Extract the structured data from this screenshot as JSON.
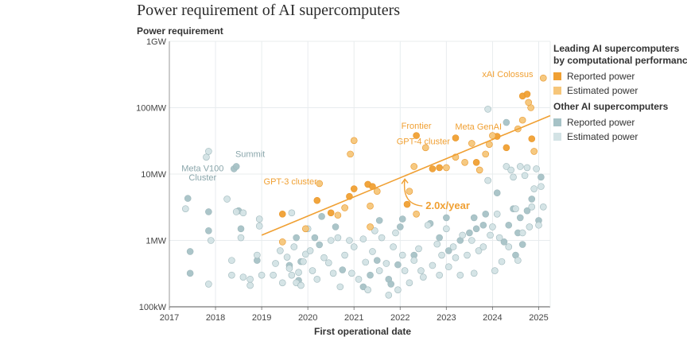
{
  "chart_data": {
    "type": "scatter",
    "title": "Power requirement of AI supercomputers",
    "ylabel": "Power requirement",
    "xlabel": "First operational date",
    "y_scale": "log",
    "xlim": [
      2017,
      2025.25
    ],
    "ylim": [
      100000,
      1000000000
    ],
    "x_ticks": [
      "2017",
      "2018",
      "2019",
      "2020",
      "2021",
      "2022",
      "2023",
      "2024",
      "2025"
    ],
    "y_ticks": [
      {
        "value": 1000000000,
        "label": "1GW"
      },
      {
        "value": 100000000,
        "label": "100MW"
      },
      {
        "value": 10000000,
        "label": "10MW"
      },
      {
        "value": 1000000,
        "label": "1MW"
      },
      {
        "value": 100000,
        "label": "100kW"
      }
    ],
    "grid": true,
    "legend_position": "right",
    "trend": {
      "label": "2.0x/year",
      "from": {
        "x": 2019.0,
        "y": 1200000
      },
      "to": {
        "x": 2025.25,
        "y": 76000000
      }
    },
    "colors": {
      "leading_reported": "#f0a033",
      "leading_estimated": "#f6c67a",
      "other_reported": "#a6c2c6",
      "other_estimated": "#d3e3e5",
      "trend": "#f0a033",
      "grid": "#e8ecee",
      "annot_other": "#8aa6ab"
    },
    "legend": [
      {
        "heading": "Leading AI supercomputers\nby computational performance",
        "items": [
          {
            "label": "Reported power",
            "color": "#f0a033"
          },
          {
            "label": "Estimated power",
            "color": "#f6c67a"
          }
        ]
      },
      {
        "heading": "Other AI supercomputers",
        "items": [
          {
            "label": "Reported power",
            "color": "#a6c2c6"
          },
          {
            "label": "Estimated power",
            "color": "#d3e3e5"
          }
        ]
      }
    ],
    "annotations": [
      {
        "text": "xAI Colossus",
        "x": 2024.88,
        "y": 290000000,
        "group": "leading",
        "anchor": "end"
      },
      {
        "text": "Frontier",
        "x": 2022.35,
        "y": 48000000,
        "group": "leading",
        "anchor": "middle"
      },
      {
        "text": "Meta GenAI",
        "x": 2024.2,
        "y": 47000000,
        "group": "leading",
        "anchor": "end"
      },
      {
        "text": "GPT-4 cluster",
        "x": 2022.5,
        "y": 28000000,
        "group": "leading",
        "anchor": "middle"
      },
      {
        "text": "GPT-3 cluster",
        "x": 2020.2,
        "y": 7000000,
        "group": "leading",
        "anchor": "end"
      },
      {
        "text": "Summit",
        "x": 2018.75,
        "y": 18000000,
        "group": "other",
        "anchor": "middle"
      },
      {
        "text": "Meta V100",
        "x": 2017.72,
        "y": 11000000,
        "group": "other",
        "anchor": "middle"
      },
      {
        "text": "Cluster",
        "x": 2017.72,
        "y": 8000000,
        "group": "other",
        "anchor": "middle"
      }
    ],
    "series": [
      {
        "name": "Leading AI supercomputers: Reported power",
        "group": "leading",
        "kind": "reported",
        "points": [
          [
            2019.45,
            2500000
          ],
          [
            2020.2,
            4000000
          ],
          [
            2020.5,
            2600000
          ],
          [
            2020.9,
            4600000
          ],
          [
            2021.3,
            7000000
          ],
          [
            2021.0,
            6000000
          ],
          [
            2021.4,
            6500000
          ],
          [
            2022.35,
            38000000
          ],
          [
            2022.7,
            12000000
          ],
          [
            2022.85,
            12500000
          ],
          [
            2023.2,
            35000000
          ],
          [
            2023.65,
            15000000
          ],
          [
            2024.1,
            37000000
          ],
          [
            2024.3,
            25000000
          ],
          [
            2024.65,
            150000000
          ],
          [
            2024.75,
            160000000
          ],
          [
            2024.85,
            34000000
          ],
          [
            2022.15,
            3500000
          ]
        ]
      },
      {
        "name": "Leading AI supercomputers: Estimated power",
        "group": "leading",
        "kind": "estimated",
        "points": [
          [
            2019.45,
            950000
          ],
          [
            2019.95,
            1500000
          ],
          [
            2020.25,
            7200000
          ],
          [
            2020.65,
            2400000
          ],
          [
            2020.8,
            3100000
          ],
          [
            2020.92,
            20000000
          ],
          [
            2021.0,
            32000000
          ],
          [
            2021.35,
            3300000
          ],
          [
            2021.5,
            5500000
          ],
          [
            2022.2,
            5500000
          ],
          [
            2022.3,
            13000000
          ],
          [
            2022.35,
            2500000
          ],
          [
            2022.55,
            25000000
          ],
          [
            2023.0,
            12500000
          ],
          [
            2023.2,
            18000000
          ],
          [
            2023.4,
            15000000
          ],
          [
            2023.55,
            29000000
          ],
          [
            2023.72,
            11500000
          ],
          [
            2023.85,
            20000000
          ],
          [
            2023.93,
            28000000
          ],
          [
            2024.0,
            38000000
          ],
          [
            2024.55,
            48000000
          ],
          [
            2024.65,
            65000000
          ],
          [
            2024.83,
            100000000
          ],
          [
            2024.78,
            120000000
          ],
          [
            2025.1,
            280000000
          ],
          [
            2024.9,
            22000000
          ],
          [
            2021.35,
            1600000
          ]
        ]
      },
      {
        "name": "Other AI supercomputers: Reported power",
        "group": "other",
        "kind": "reported",
        "points": [
          [
            2017.4,
            4300000
          ],
          [
            2017.45,
            320000
          ],
          [
            2017.45,
            680000
          ],
          [
            2017.85,
            1400000
          ],
          [
            2017.85,
            2700000
          ],
          [
            2018.4,
            12000000
          ],
          [
            2018.45,
            13000000
          ],
          [
            2018.5,
            2800000
          ],
          [
            2018.55,
            1500000
          ],
          [
            2018.9,
            500000
          ],
          [
            2019.75,
            1100000
          ],
          [
            2019.8,
            250000
          ],
          [
            2019.85,
            480000
          ],
          [
            2020.15,
            1100000
          ],
          [
            2020.25,
            860000
          ],
          [
            2020.6,
            1600000
          ],
          [
            2020.75,
            360000
          ],
          [
            2021.2,
            200000
          ],
          [
            2021.35,
            300000
          ],
          [
            2021.5,
            500000
          ],
          [
            2021.55,
            2000000
          ],
          [
            2021.75,
            260000
          ],
          [
            2021.8,
            220000
          ],
          [
            2022.0,
            1600000
          ],
          [
            2022.05,
            2100000
          ],
          [
            2022.3,
            600000
          ],
          [
            2022.65,
            1800000
          ],
          [
            2022.85,
            1100000
          ],
          [
            2023.0,
            2200000
          ],
          [
            2023.05,
            700000
          ],
          [
            2023.3,
            1000000
          ],
          [
            2023.5,
            1300000
          ],
          [
            2023.65,
            1500000
          ],
          [
            2023.8,
            1700000
          ],
          [
            2023.85,
            2500000
          ],
          [
            2024.1,
            5200000
          ],
          [
            2024.3,
            60000000
          ],
          [
            2024.35,
            1700000
          ],
          [
            2024.45,
            3000000
          ],
          [
            2024.55,
            1300000
          ],
          [
            2024.6,
            2200000
          ],
          [
            2024.65,
            870000
          ],
          [
            2024.75,
            2800000
          ],
          [
            2024.85,
            4200000
          ],
          [
            2025.0,
            2000000
          ],
          [
            2025.05,
            9000000
          ],
          [
            2024.25,
            950000
          ],
          [
            2024.5,
            600000
          ],
          [
            2023.6,
            2200000
          ],
          [
            2021.95,
            430000
          ],
          [
            2020.3,
            2300000
          ],
          [
            2019.6,
            420000
          ]
        ]
      },
      {
        "name": "Other AI supercomputers: Estimated power",
        "group": "other",
        "kind": "estimated",
        "points": [
          [
            2017.35,
            3000000
          ],
          [
            2017.8,
            18000000
          ],
          [
            2017.85,
            22000000
          ],
          [
            2017.85,
            220000
          ],
          [
            2017.9,
            1000000
          ],
          [
            2018.25,
            4200000
          ],
          [
            2018.45,
            2700000
          ],
          [
            2018.6,
            2600000
          ],
          [
            2018.55,
            1100000
          ],
          [
            2018.35,
            500000
          ],
          [
            2018.35,
            300000
          ],
          [
            2018.6,
            280000
          ],
          [
            2018.75,
            260000
          ],
          [
            2018.75,
            210000
          ],
          [
            2018.9,
            600000
          ],
          [
            2018.95,
            1650000
          ],
          [
            2018.95,
            2100000
          ],
          [
            2019.0,
            300000
          ],
          [
            2019.25,
            300000
          ],
          [
            2019.3,
            450000
          ],
          [
            2019.4,
            700000
          ],
          [
            2019.45,
            230000
          ],
          [
            2019.55,
            560000
          ],
          [
            2019.6,
            380000
          ],
          [
            2019.65,
            300000
          ],
          [
            2019.65,
            2600000
          ],
          [
            2019.7,
            800000
          ],
          [
            2019.75,
            230000
          ],
          [
            2019.8,
            330000
          ],
          [
            2019.85,
            210000
          ],
          [
            2019.9,
            480000
          ],
          [
            2019.95,
            620000
          ],
          [
            2020.0,
            1500000
          ],
          [
            2020.05,
            700000
          ],
          [
            2020.1,
            350000
          ],
          [
            2020.2,
            260000
          ],
          [
            2020.35,
            550000
          ],
          [
            2020.45,
            460000
          ],
          [
            2020.5,
            1000000
          ],
          [
            2020.55,
            320000
          ],
          [
            2020.65,
            1100000
          ],
          [
            2020.7,
            200000
          ],
          [
            2020.8,
            600000
          ],
          [
            2020.9,
            1000000
          ],
          [
            2020.95,
            320000
          ],
          [
            2021.0,
            800000
          ],
          [
            2021.1,
            260000
          ],
          [
            2021.2,
            1050000
          ],
          [
            2021.25,
            470000
          ],
          [
            2021.3,
            180000
          ],
          [
            2021.4,
            680000
          ],
          [
            2021.45,
            1400000
          ],
          [
            2021.55,
            350000
          ],
          [
            2021.6,
            1100000
          ],
          [
            2021.7,
            450000
          ],
          [
            2021.75,
            150000
          ],
          [
            2021.85,
            800000
          ],
          [
            2021.9,
            1300000
          ],
          [
            2021.95,
            180000
          ],
          [
            2022.05,
            600000
          ],
          [
            2022.1,
            350000
          ],
          [
            2022.2,
            230000
          ],
          [
            2022.3,
            500000
          ],
          [
            2022.4,
            750000
          ],
          [
            2022.45,
            350000
          ],
          [
            2022.5,
            280000
          ],
          [
            2022.6,
            1700000
          ],
          [
            2022.7,
            420000
          ],
          [
            2022.8,
            880000
          ],
          [
            2022.85,
            300000
          ],
          [
            2022.9,
            600000
          ],
          [
            2023.0,
            1500000
          ],
          [
            2023.05,
            400000
          ],
          [
            2023.15,
            800000
          ],
          [
            2023.2,
            550000
          ],
          [
            2023.3,
            300000
          ],
          [
            2023.35,
            1200000
          ],
          [
            2023.45,
            600000
          ],
          [
            2023.55,
            1000000
          ],
          [
            2023.6,
            320000
          ],
          [
            2023.7,
            700000
          ],
          [
            2023.8,
            800000
          ],
          [
            2023.9,
            95000000
          ],
          [
            2023.9,
            8000000
          ],
          [
            2023.95,
            1200000
          ],
          [
            2024.0,
            1600000
          ],
          [
            2024.05,
            350000
          ],
          [
            2024.1,
            2500000
          ],
          [
            2024.15,
            1100000
          ],
          [
            2024.2,
            480000
          ],
          [
            2024.3,
            13000000
          ],
          [
            2024.4,
            11500000
          ],
          [
            2024.45,
            9000000
          ],
          [
            2024.5,
            3000000
          ],
          [
            2024.6,
            13000000
          ],
          [
            2024.7,
            9500000
          ],
          [
            2024.75,
            12500000
          ],
          [
            2024.8,
            1600000
          ],
          [
            2024.85,
            3200000
          ],
          [
            2024.9,
            6000000
          ],
          [
            2024.95,
            12000000
          ],
          [
            2025.0,
            1700000
          ],
          [
            2025.05,
            6500000
          ],
          [
            2025.1,
            3200000
          ],
          [
            2024.35,
            800000
          ],
          [
            2024.55,
            500000
          ],
          [
            2024.65,
            1300000
          ]
        ]
      }
    ]
  }
}
